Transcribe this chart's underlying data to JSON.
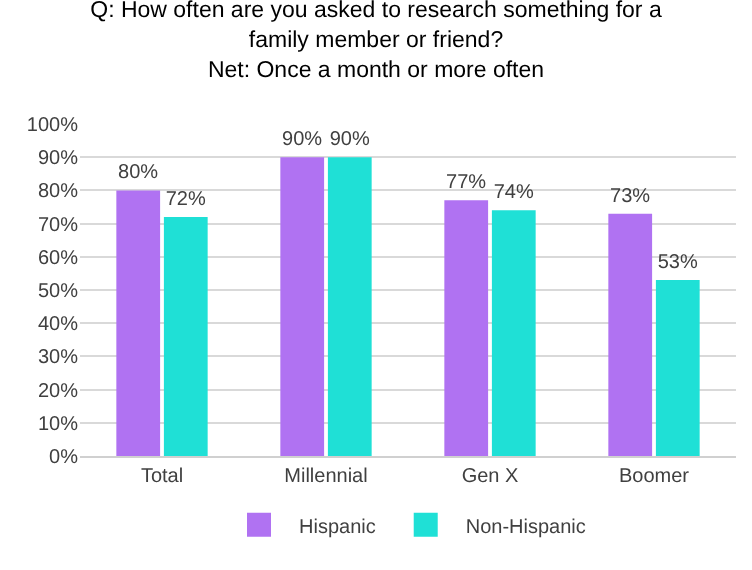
{
  "chart_data": {
    "type": "bar",
    "title": "Q: How often are you asked to research something for a family member or friend?",
    "subtitle": "Net: Once a month or more often",
    "categories": [
      "Total",
      "Millennial",
      "Gen X",
      "Boomer"
    ],
    "series": [
      {
        "name": "Hispanic",
        "color": "#b072f2",
        "values": [
          80,
          90,
          77,
          73
        ],
        "value_labels": [
          "80%",
          "90%",
          "77%",
          "73%"
        ]
      },
      {
        "name": "Non-Hispanic",
        "color": "#1fe0d6",
        "values": [
          72,
          90,
          74,
          53
        ],
        "value_labels": [
          "72%",
          "90%",
          "74%",
          "53%"
        ]
      }
    ],
    "ylim": [
      0,
      100
    ],
    "yticks": [
      {
        "value": 0,
        "label": "0%"
      },
      {
        "value": 10,
        "label": "10%"
      },
      {
        "value": 20,
        "label": "20%"
      },
      {
        "value": 30,
        "label": "30%"
      },
      {
        "value": 40,
        "label": "40%"
      },
      {
        "value": 50,
        "label": "50%"
      },
      {
        "value": 60,
        "label": "60%"
      },
      {
        "value": 70,
        "label": "70%"
      },
      {
        "value": 80,
        "label": "80%"
      },
      {
        "value": 90,
        "label": "90%"
      },
      {
        "value": 100,
        "label": "100%"
      }
    ],
    "grid": "y",
    "legend": "bottom"
  }
}
